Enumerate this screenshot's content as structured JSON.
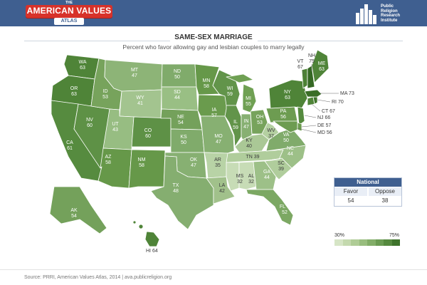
{
  "header": {
    "logo_the": "THE",
    "logo_main": "AMERICAN VALUES",
    "logo_sub": "ATLAS",
    "org_line1": "Public",
    "org_line2": "Religion",
    "org_line3": "Research",
    "org_line4": "Institute"
  },
  "title": "SAME-SEX MARRIAGE",
  "subtitle": "Percent who favor allowing gay and lesbian couples to marry legally",
  "states": {
    "WA": "63",
    "OR": "63",
    "CA": "61",
    "NV": "60",
    "ID": "53",
    "MT": "47",
    "WY": "41",
    "UT": "43",
    "AZ": "58",
    "CO": "60",
    "NM": "58",
    "ND": "50",
    "SD": "44",
    "NE": "54",
    "KS": "50",
    "OK": "47",
    "TX": "48",
    "MN": "58",
    "IA": "57",
    "MO": "47",
    "AR": "35",
    "LA": "42",
    "WI": "59",
    "IL": "59",
    "MI": "55",
    "IN": "47",
    "OH": "53",
    "KY": "40",
    "TN": "39",
    "MS": "32",
    "AL": "32",
    "GA": "44",
    "FL": "52",
    "SC": "39",
    "NC": "44",
    "VA": "50",
    "WV": "37",
    "PA": "56",
    "NY": "63",
    "ME": "63",
    "AK": "54",
    "HI": "HI 64",
    "VT": "VT",
    "VT_v": "67",
    "NH": "NH",
    "NH_v": "75",
    "MA": "MA 73",
    "RI": "RI 70",
    "CT": "CT 67",
    "NJ": "NJ 66",
    "DE": "DE 57",
    "MD": "MD 56"
  },
  "national": {
    "title": "National",
    "favor_label": "Favor",
    "oppose_label": "Oppose",
    "favor_value": "54",
    "oppose_value": "38"
  },
  "legend": {
    "low": "30%",
    "high": "75%",
    "colors": [
      "#d6e5c6",
      "#c4d9ae",
      "#afcc96",
      "#98bd7e",
      "#82ad68",
      "#6a9b52",
      "#55893e",
      "#3e732b"
    ]
  },
  "footer": "Source: PRRI, American Values Atlas, 2014  |  ava.publicreligion.org"
}
